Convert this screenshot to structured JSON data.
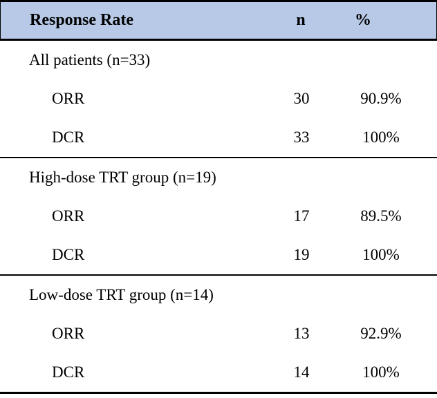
{
  "table": {
    "title": "Response Rate table",
    "colors": {
      "header_bg": "#b7c9e6",
      "rule": "#000000"
    },
    "header": {
      "response_rate": "Response Rate",
      "n": "n",
      "pct": "%"
    },
    "sections": [
      {
        "label": "All patients (n=33)",
        "rows": [
          {
            "metric": "ORR",
            "n": "30",
            "pct": "90.9%"
          },
          {
            "metric": "DCR",
            "n": "33",
            "pct": "100%"
          }
        ]
      },
      {
        "label": "High-dose TRT group (n=19)",
        "rows": [
          {
            "metric": "ORR",
            "n": "17",
            "pct": "89.5%"
          },
          {
            "metric": "DCR",
            "n": "19",
            "pct": "100%"
          }
        ]
      },
      {
        "label": "Low-dose TRT group (n=14)",
        "rows": [
          {
            "metric": "ORR",
            "n": "13",
            "pct": "92.9%"
          },
          {
            "metric": "DCR",
            "n": "14",
            "pct": "100%"
          }
        ]
      }
    ]
  }
}
